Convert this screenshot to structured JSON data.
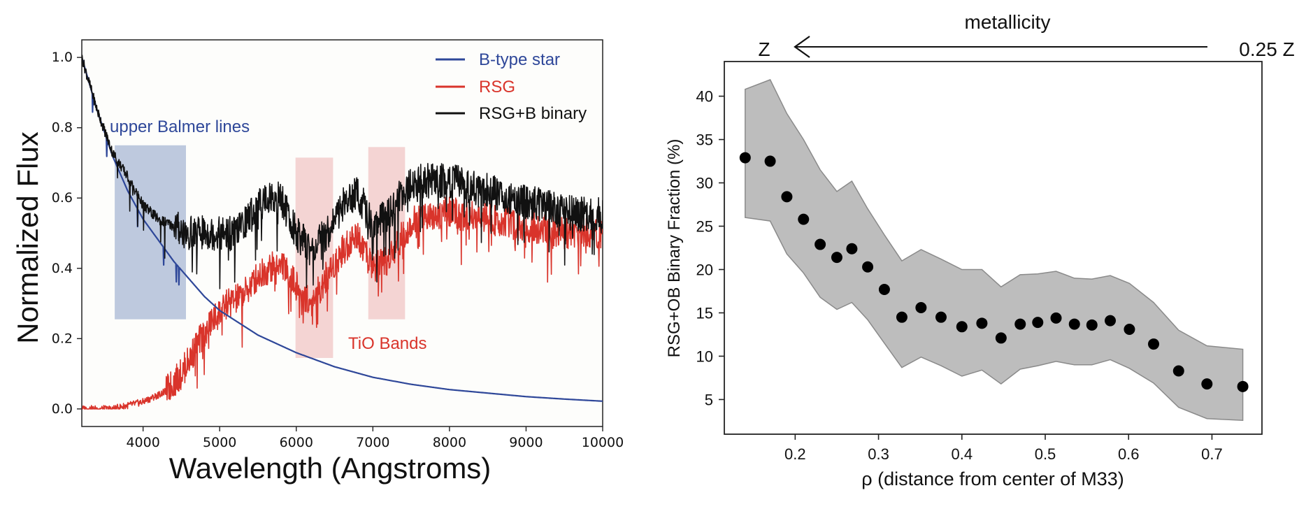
{
  "chart_data": [
    {
      "type": "line",
      "xlabel": "Wavelength (Angstroms)",
      "ylabel": "Normalized Flux",
      "xlim": [
        3200,
        10000
      ],
      "ylim": [
        -0.05,
        1.05
      ],
      "xticks": [
        4000,
        5000,
        6000,
        7000,
        8000,
        9000,
        10000
      ],
      "yticks": [
        0.0,
        0.2,
        0.4,
        0.6,
        0.8,
        1.0
      ],
      "ytick_labels": [
        "0.0",
        "0.2",
        "0.4",
        "0.6",
        "0.8",
        "1.0"
      ],
      "legend_position": "top-right",
      "series": [
        {
          "name": "B-type star",
          "color": "#2e4799",
          "x": [
            3200,
            3400,
            3600,
            3800,
            4000,
            4200,
            4400,
            4600,
            4800,
            5000,
            5500,
            6000,
            6500,
            7000,
            7500,
            8000,
            8500,
            9000,
            9500,
            10000
          ],
          "y": [
            1.0,
            0.85,
            0.72,
            0.62,
            0.54,
            0.48,
            0.42,
            0.37,
            0.32,
            0.28,
            0.21,
            0.16,
            0.12,
            0.09,
            0.07,
            0.055,
            0.045,
            0.035,
            0.028,
            0.022
          ]
        },
        {
          "name": "RSG",
          "color": "#d9342b",
          "x": [
            3200,
            3600,
            4000,
            4300,
            4500,
            4700,
            4900,
            5100,
            5300,
            5500,
            5800,
            6000,
            6200,
            6400,
            6600,
            6800,
            7000,
            7200,
            7400,
            7600,
            8000,
            8500,
            9000,
            9500,
            10000
          ],
          "y": [
            0.0,
            0.0,
            0.02,
            0.05,
            0.1,
            0.18,
            0.25,
            0.3,
            0.32,
            0.38,
            0.42,
            0.35,
            0.3,
            0.38,
            0.45,
            0.5,
            0.4,
            0.42,
            0.5,
            0.55,
            0.56,
            0.54,
            0.52,
            0.5,
            0.5
          ]
        },
        {
          "name": "RSG+B binary",
          "color": "#111111",
          "x": [
            3200,
            3400,
            3600,
            3800,
            4000,
            4200,
            4400,
            4600,
            4800,
            5000,
            5200,
            5400,
            5600,
            5800,
            6000,
            6200,
            6400,
            6600,
            6800,
            7000,
            7200,
            7400,
            7600,
            8000,
            8500,
            9000,
            9500,
            10000
          ],
          "y": [
            1.0,
            0.85,
            0.73,
            0.66,
            0.58,
            0.54,
            0.52,
            0.5,
            0.5,
            0.5,
            0.5,
            0.55,
            0.6,
            0.6,
            0.5,
            0.45,
            0.5,
            0.58,
            0.62,
            0.52,
            0.55,
            0.62,
            0.65,
            0.65,
            0.62,
            0.59,
            0.56,
            0.55
          ]
        }
      ],
      "annotations": [
        {
          "text": "upper Balmer lines",
          "color": "#2e4799",
          "x_range": [
            3630,
            4560
          ],
          "y_range": [
            0.255,
            0.75
          ],
          "fill": "#b3bfd8"
        },
        {
          "text": "TiO Bands",
          "color": "#d9342b",
          "bands": [
            [
              5990,
              6480,
              0.145,
              0.715
            ],
            [
              6940,
              7420,
              0.255,
              0.745
            ]
          ],
          "fill": "#f1c9c9"
        }
      ]
    },
    {
      "type": "scatter",
      "xlabel": "ρ  (distance from center of M33)",
      "ylabel": "RSG+OB Binary Fraction (%)",
      "xlim": [
        0.115,
        0.76
      ],
      "ylim": [
        1,
        44
      ],
      "xticks": [
        0.2,
        0.3,
        0.4,
        0.5,
        0.6,
        0.7
      ],
      "xtick_labels": [
        "0.2",
        "0.3",
        "0.4",
        "0.5",
        "0.6",
        "0.7"
      ],
      "yticks": [
        5,
        10,
        15,
        20,
        25,
        30,
        35,
        40
      ],
      "points": {
        "x": [
          0.14,
          0.17,
          0.19,
          0.21,
          0.23,
          0.25,
          0.268,
          0.287,
          0.307,
          0.328,
          0.351,
          0.375,
          0.4,
          0.424,
          0.447,
          0.47,
          0.491,
          0.513,
          0.535,
          0.556,
          0.578,
          0.601,
          0.63,
          0.66,
          0.694,
          0.737
        ],
        "y": [
          32.9,
          32.5,
          28.4,
          25.8,
          22.9,
          21.4,
          22.4,
          20.3,
          17.7,
          14.5,
          15.6,
          14.5,
          13.4,
          13.8,
          12.1,
          13.7,
          13.9,
          14.4,
          13.7,
          13.6,
          14.1,
          13.1,
          11.4,
          8.3,
          6.8,
          6.5
        ]
      },
      "band": {
        "x": [
          0.14,
          0.17,
          0.19,
          0.21,
          0.23,
          0.25,
          0.268,
          0.287,
          0.307,
          0.328,
          0.351,
          0.375,
          0.4,
          0.424,
          0.447,
          0.47,
          0.491,
          0.513,
          0.535,
          0.556,
          0.578,
          0.601,
          0.63,
          0.66,
          0.694,
          0.737
        ],
        "upper": [
          40.8,
          41.9,
          38.0,
          35.0,
          31.5,
          29.0,
          30.2,
          27.0,
          24.0,
          21.0,
          22.3,
          21.2,
          20.0,
          20.0,
          18.0,
          19.4,
          19.5,
          19.8,
          19.0,
          18.9,
          19.3,
          18.4,
          16.2,
          13.0,
          11.2,
          10.8
        ],
        "lower": [
          26.0,
          25.6,
          21.8,
          19.6,
          16.8,
          15.4,
          16.2,
          14.2,
          11.5,
          8.7,
          9.9,
          8.9,
          7.7,
          8.4,
          6.8,
          8.5,
          8.9,
          9.4,
          9.0,
          9.0,
          9.6,
          8.6,
          6.9,
          4.1,
          2.8,
          2.6
        ],
        "fill": "#bdbdbd"
      },
      "top_axis": {
        "label": "metallicity",
        "left": "Z",
        "right": "0.25 Z"
      }
    }
  ]
}
